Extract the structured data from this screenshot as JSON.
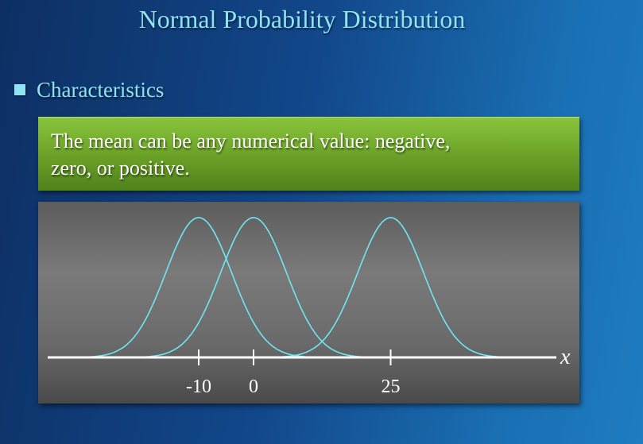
{
  "title": "Normal Probability Distribution",
  "bullet": {
    "text": "Characteristics"
  },
  "callout": {
    "line1": "The mean can be any numerical value:  negative,",
    "line2": "zero, or positive."
  },
  "colors": {
    "curve": "#6fe6f2",
    "accent_text": "#8fe3f2",
    "callout_green": "#6fa62a"
  },
  "chart_data": {
    "type": "line",
    "xlabel": "x",
    "ticks": [
      {
        "value": -10,
        "label": "-10"
      },
      {
        "value": 0,
        "label": "0"
      },
      {
        "value": 25,
        "label": "25"
      }
    ],
    "series": [
      {
        "mean": -10,
        "sd": 6
      },
      {
        "mean": 0,
        "sd": 6
      },
      {
        "mean": 25,
        "sd": 6
      }
    ]
  }
}
